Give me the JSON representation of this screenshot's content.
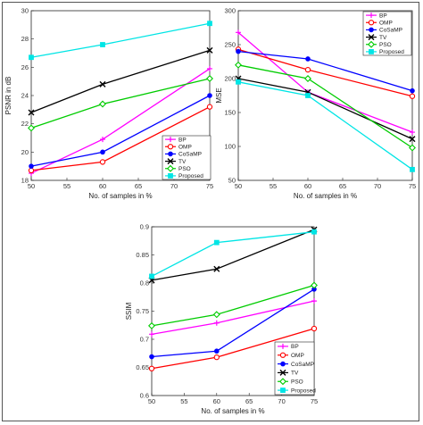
{
  "chart_data": [
    {
      "type": "line",
      "xlabel": "No. of samples in %",
      "ylabel": "PSNR in dB",
      "x": [
        50,
        60,
        75
      ],
      "xticks": [
        "50",
        "55",
        "60",
        "65",
        "70",
        "75"
      ],
      "xlim": [
        50,
        75
      ],
      "ylim": [
        18,
        30
      ],
      "yticks": [
        "18",
        "20",
        "22",
        "24",
        "26",
        "28",
        "30"
      ],
      "legend_position": "bottom-right",
      "grid": false,
      "series": [
        {
          "name": "BP",
          "color": "#ff00ff",
          "marker": "plus",
          "values": [
            18.5,
            20.9,
            25.9
          ]
        },
        {
          "name": "OMP",
          "color": "#ff0000",
          "marker": "circle",
          "values": [
            18.7,
            19.3,
            23.2
          ]
        },
        {
          "name": "CoSaMP",
          "color": "#0000ff",
          "marker": "dot",
          "values": [
            19.0,
            20.0,
            24.0
          ]
        },
        {
          "name": "TV",
          "color": "#000000",
          "marker": "x",
          "values": [
            22.8,
            24.8,
            27.2
          ]
        },
        {
          "name": "PSO",
          "color": "#00cc00",
          "marker": "diamond",
          "values": [
            21.7,
            23.4,
            25.2
          ]
        },
        {
          "name": "Proposed",
          "color": "#00e5e5",
          "marker": "square",
          "values": [
            26.7,
            27.6,
            29.1
          ]
        }
      ]
    },
    {
      "type": "line",
      "xlabel": "No. of samples in %",
      "ylabel": "MSE",
      "x": [
        50,
        60,
        75
      ],
      "xticks": [
        "50",
        "55",
        "60",
        "65",
        "70",
        "75"
      ],
      "xlim": [
        50,
        75
      ],
      "ylim": [
        50,
        300
      ],
      "yticks": [
        "50",
        "100",
        "150",
        "200",
        "250",
        "300"
      ],
      "legend_position": "top-right",
      "grid": false,
      "series": [
        {
          "name": "BP",
          "color": "#ff00ff",
          "marker": "plus",
          "values": [
            268,
            180,
            121
          ]
        },
        {
          "name": "OMP",
          "color": "#ff0000",
          "marker": "circle",
          "values": [
            243,
            213,
            174
          ]
        },
        {
          "name": "CoSaMP",
          "color": "#0000ff",
          "marker": "dot",
          "values": [
            240,
            229,
            182
          ]
        },
        {
          "name": "TV",
          "color": "#000000",
          "marker": "x",
          "values": [
            200,
            180,
            111
          ]
        },
        {
          "name": "PSO",
          "color": "#00cc00",
          "marker": "diamond",
          "values": [
            220,
            200,
            98
          ]
        },
        {
          "name": "Proposed",
          "color": "#00e5e5",
          "marker": "square",
          "values": [
            195,
            175,
            66
          ]
        }
      ]
    },
    {
      "type": "line",
      "xlabel": "No. of samples in %",
      "ylabel": "SSIM",
      "x": [
        50,
        60,
        75
      ],
      "xticks": [
        "50",
        "55",
        "60",
        "65",
        "70",
        "75"
      ],
      "xlim": [
        50,
        75
      ],
      "ylim": [
        0.6,
        0.9
      ],
      "yticks": [
        "0.6",
        "0.65",
        "0.7",
        "0.75",
        "0.8",
        "0.85",
        "0.9"
      ],
      "legend_position": "bottom-right",
      "grid": false,
      "series": [
        {
          "name": "BP",
          "color": "#ff00ff",
          "marker": "plus",
          "values": [
            0.709,
            0.729,
            0.768
          ]
        },
        {
          "name": "OMP",
          "color": "#ff0000",
          "marker": "circle",
          "values": [
            0.648,
            0.668,
            0.719
          ]
        },
        {
          "name": "CoSaMP",
          "color": "#0000ff",
          "marker": "dot",
          "values": [
            0.669,
            0.679,
            0.789
          ]
        },
        {
          "name": "TV",
          "color": "#000000",
          "marker": "x",
          "values": [
            0.805,
            0.825,
            0.895
          ]
        },
        {
          "name": "PSO",
          "color": "#00cc00",
          "marker": "diamond",
          "values": [
            0.724,
            0.744,
            0.796
          ]
        },
        {
          "name": "Proposed",
          "color": "#00e5e5",
          "marker": "square",
          "values": [
            0.812,
            0.872,
            0.891
          ]
        }
      ]
    }
  ]
}
